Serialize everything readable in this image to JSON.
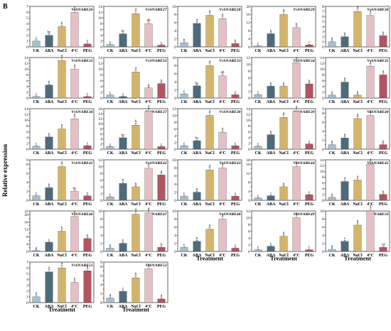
{
  "figure": {
    "panel_letter": "B",
    "y_axis_label": "Relative expression",
    "x_axis_label": "Treatment",
    "colors": {
      "CK": "#a6bfce",
      "ABA": "#4e6b7c",
      "NaCl": "#d4b46d",
      "4°C": "#e6bfc6",
      "PEG": "#b05563"
    }
  },
  "chart_data": [
    {
      "type": "bar",
      "title": "VvSNARE26",
      "categories": [
        "CK",
        "ABA",
        "NaCl",
        "4°C",
        "PEG"
      ],
      "values": [
        1,
        2,
        3.5,
        6,
        0.5
      ],
      "letters": [
        "c",
        "bc",
        "b",
        "a",
        "c"
      ],
      "ylim": [
        0,
        7
      ],
      "yticks": [
        0,
        1,
        2,
        3,
        4,
        5,
        6,
        7
      ]
    },
    {
      "type": "bar",
      "title": "VvSNARE27",
      "categories": [
        "CK",
        "ABA",
        "NaCl",
        "4°C",
        "PEG"
      ],
      "values": [
        0.8,
        4.5,
        11.5,
        8,
        0.6
      ],
      "letters": [
        "c",
        "bc",
        "a",
        "ab",
        "c"
      ],
      "ylim": [
        0,
        14
      ],
      "yticks": [
        0,
        2,
        4,
        6,
        8,
        10,
        12,
        14
      ]
    },
    {
      "type": "bar",
      "title": "VvSNARE28",
      "categories": [
        "CK",
        "ABA",
        "NaCl",
        "4°C",
        "PEG"
      ],
      "values": [
        1,
        5.8,
        7.8,
        7,
        0.8
      ],
      "letters": [
        "b",
        "a",
        "a",
        "a",
        "b"
      ],
      "ylim": [
        0,
        10
      ],
      "yticks": [
        0,
        2,
        4,
        6,
        8,
        10
      ]
    },
    {
      "type": "bar",
      "title": "VvSNARE29",
      "categories": [
        "CK",
        "ABA",
        "NaCl",
        "4°C",
        "PEG"
      ],
      "values": [
        0.5,
        6.5,
        16,
        9.5,
        1
      ],
      "letters": [
        "c",
        "b",
        "a",
        "b",
        "c"
      ],
      "ylim": [
        0,
        20
      ],
      "yticks": [
        0,
        2,
        4,
        6,
        8,
        10,
        12,
        14,
        16,
        18,
        20
      ]
    },
    {
      "type": "bar",
      "title": "VvSNARE30",
      "categories": [
        "CK",
        "ABA",
        "NaCl",
        "4°C",
        "PEG"
      ],
      "values": [
        1,
        2,
        7,
        6.2,
        2.2
      ],
      "letters": [
        "b",
        "b",
        "a",
        "a",
        "b"
      ],
      "ylim": [
        0,
        8
      ],
      "yticks": [
        0,
        1,
        2,
        3,
        4,
        5,
        6,
        7,
        8
      ]
    },
    {
      "type": "bar",
      "title": "VvSNARE31",
      "categories": [
        "CK",
        "ABA",
        "NaCl",
        "4°C",
        "PEG"
      ],
      "values": [
        0.5,
        4.5,
        13,
        10,
        0.5
      ],
      "letters": [
        "c",
        "b",
        "a",
        "a",
        "c"
      ],
      "ylim": [
        0,
        14
      ],
      "yticks": [
        0,
        1,
        2,
        3,
        4,
        5,
        6,
        7,
        8,
        9,
        10,
        11,
        12,
        13,
        14
      ]
    },
    {
      "type": "bar",
      "title": "VvSNARE32",
      "categories": [
        "CK",
        "ABA",
        "NaCl",
        "4°C",
        "PEG"
      ],
      "values": [
        1,
        0.5,
        9,
        3.5,
        5
      ],
      "letters": [
        "c",
        "c",
        "a",
        "b",
        "b"
      ],
      "ylim": [
        0,
        14
      ],
      "yticks": [
        0,
        2,
        4,
        6,
        8,
        10,
        12,
        14
      ]
    },
    {
      "type": "bar",
      "title": "VvSNARE33",
      "categories": [
        "CK",
        "ABA",
        "NaCl",
        "4°C",
        "PEG"
      ],
      "values": [
        1,
        3,
        8,
        5.5,
        0.8
      ],
      "letters": [
        "c",
        "bc",
        "a",
        "ab",
        "c"
      ],
      "ylim": [
        0,
        10
      ],
      "yticks": [
        0,
        2,
        4,
        6,
        8,
        10
      ]
    },
    {
      "type": "bar",
      "title": "VvSNARE34",
      "categories": [
        "CK",
        "ABA",
        "NaCl",
        "4°C",
        "PEG"
      ],
      "values": [
        1,
        3.5,
        3.5,
        10.5,
        4.2
      ],
      "letters": [
        "c",
        "b",
        "b",
        "a",
        "b"
      ],
      "ylim": [
        0,
        12
      ],
      "yticks": [
        0,
        2,
        4,
        6,
        8,
        10,
        12
      ]
    },
    {
      "type": "bar",
      "title": "VvSNARE35",
      "categories": [
        "CK",
        "ABA",
        "NaCl",
        "4°C",
        "PEG"
      ],
      "values": [
        1,
        5.5,
        1,
        11,
        8
      ],
      "letters": [
        "b",
        "b",
        "b",
        "a",
        "a"
      ],
      "ylim": [
        0,
        14
      ],
      "yticks": [
        0,
        2,
        4,
        6,
        8,
        10,
        12,
        14
      ]
    },
    {
      "type": "bar",
      "title": "VvSNARE36",
      "categories": [
        "CK",
        "ABA",
        "NaCl",
        "4°C",
        "PEG"
      ],
      "values": [
        1,
        4.2,
        7,
        10.5,
        1.2
      ],
      "letters": [
        "c",
        "b",
        "b",
        "a",
        "c"
      ],
      "ylim": [
        0,
        14
      ],
      "yticks": [
        0,
        2,
        4,
        6,
        8,
        10,
        12,
        14
      ]
    },
    {
      "type": "bar",
      "title": "VvSNARE37",
      "categories": [
        "CK",
        "ABA",
        "NaCl",
        "4°C",
        "PEG"
      ],
      "values": [
        1,
        4.5,
        9.5,
        15,
        1
      ],
      "letters": [
        "c",
        "bc",
        "b",
        "a",
        "c"
      ],
      "ylim": [
        0,
        16
      ],
      "yticks": [
        0,
        2,
        4,
        6,
        8,
        10,
        12,
        14,
        16
      ]
    },
    {
      "type": "bar",
      "title": "VvSNARE38",
      "categories": [
        "CK",
        "ABA",
        "NaCl",
        "4°C",
        "PEG"
      ],
      "values": [
        1,
        2.5,
        10,
        5,
        1
      ],
      "letters": [
        "c",
        "bc",
        "a",
        "b",
        "c"
      ],
      "ylim": [
        0,
        12
      ],
      "yticks": [
        0,
        2,
        4,
        6,
        8,
        10,
        12
      ]
    },
    {
      "type": "bar",
      "title": "VvSNARE39",
      "categories": [
        "CK",
        "ABA",
        "NaCl",
        "4°C",
        "PEG"
      ],
      "values": [
        1,
        5,
        11,
        13,
        1.8
      ],
      "letters": [
        "c",
        "b",
        "a",
        "a",
        "c"
      ],
      "ylim": [
        0,
        14
      ],
      "yticks": [
        0,
        2,
        4,
        6,
        8,
        10,
        12,
        14
      ]
    },
    {
      "type": "bar",
      "title": "VvSNARE40",
      "categories": [
        "CK",
        "ABA",
        "NaCl",
        "4°C",
        "PEG"
      ],
      "values": [
        1,
        2.5,
        6.8,
        7.5,
        1
      ],
      "letters": [
        "b",
        "b",
        "a",
        "a",
        "b"
      ],
      "ylim": [
        0,
        9
      ],
      "yticks": [
        0,
        1,
        2,
        3,
        4,
        5,
        6,
        7,
        8,
        9
      ]
    },
    {
      "type": "bar",
      "title": "VvSNARE41",
      "categories": [
        "CK",
        "ABA",
        "NaCl",
        "4°C",
        "PEG"
      ],
      "values": [
        1,
        2.8,
        7.5,
        2,
        1
      ],
      "letters": [
        "c",
        "b",
        "a",
        "bc",
        "c"
      ],
      "ylim": [
        0,
        9
      ],
      "yticks": [
        0,
        1,
        2,
        3,
        4,
        5,
        6,
        7,
        8,
        9
      ]
    },
    {
      "type": "bar",
      "title": "VvSNARE42",
      "categories": [
        "CK",
        "ABA",
        "NaCl",
        "4°C",
        "PEG"
      ],
      "values": [
        1,
        5,
        4,
        9.5,
        7.5
      ],
      "letters": [
        "c",
        "b",
        "b",
        "a",
        "a"
      ],
      "ylim": [
        0,
        12
      ],
      "yticks": [
        0,
        2,
        4,
        6,
        8,
        10,
        12
      ]
    },
    {
      "type": "bar",
      "title": "VvSNARE43",
      "categories": [
        "CK",
        "ABA",
        "NaCl",
        "4°C",
        "PEG"
      ],
      "values": [
        1,
        2,
        7.5,
        8,
        1
      ],
      "letters": [
        "c",
        "b",
        "a",
        "a",
        "c"
      ],
      "ylim": [
        0,
        10
      ],
      "yticks": [
        0,
        2,
        4,
        6,
        8,
        10
      ]
    },
    {
      "type": "bar",
      "title": "VvSNARE44",
      "categories": [
        "CK",
        "ABA",
        "NaCl",
        "4°C",
        "PEG"
      ],
      "values": [
        1,
        2,
        6,
        15,
        2.5
      ],
      "letters": [
        "c",
        "c",
        "b",
        "a",
        "c"
      ],
      "ylim": [
        0,
        18
      ],
      "yticks": [
        0,
        2,
        4,
        6,
        8,
        10,
        12,
        14,
        16,
        18
      ]
    },
    {
      "type": "bar",
      "title": "VvSNARE45",
      "categories": [
        "CK",
        "ABA",
        "NaCl",
        "4°C",
        "PEG"
      ],
      "values": [
        1,
        6.5,
        7,
        12.5,
        2
      ],
      "letters": [
        "b",
        "a",
        "a",
        "a",
        "b"
      ],
      "ylim": [
        0,
        14
      ],
      "yticks": [
        0,
        2,
        4,
        6,
        8,
        10,
        12,
        14
      ]
    },
    {
      "type": "bar",
      "title": "VvSNARE46",
      "categories": [
        "CK",
        "ABA",
        "NaCl",
        "4°C",
        "PEG"
      ],
      "values": [
        0.5,
        5,
        11,
        19,
        7
      ],
      "letters": [
        "d",
        "c",
        "b",
        "a",
        "b"
      ],
      "ylim": [
        0,
        22
      ],
      "yticks": [
        0,
        2,
        4,
        6,
        8,
        10,
        12,
        14,
        16,
        18,
        20,
        22
      ]
    },
    {
      "type": "bar",
      "title": "VvSNARE47",
      "categories": [
        "CK",
        "ABA",
        "NaCl",
        "4°C",
        "PEG"
      ],
      "values": [
        0.8,
        2,
        9.2,
        9.5,
        1
      ],
      "letters": [
        "b",
        "b",
        "a",
        "a",
        "b"
      ],
      "ylim": [
        0,
        10
      ],
      "yticks": [
        0,
        2,
        4,
        6,
        8,
        10
      ]
    },
    {
      "type": "bar",
      "title": "VvSNARE48",
      "categories": [
        "CK",
        "ABA",
        "NaCl",
        "4°C",
        "PEG"
      ],
      "values": [
        1,
        2.5,
        5.5,
        8,
        0.8
      ],
      "letters": [
        "c",
        "b",
        "b",
        "a",
        "c"
      ],
      "ylim": [
        0,
        10
      ],
      "yticks": [
        0,
        2,
        4,
        6,
        8,
        10
      ]
    },
    {
      "type": "bar",
      "title": "VvSNARE49",
      "categories": [
        "CK",
        "ABA",
        "NaCl",
        "4°C",
        "PEG"
      ],
      "values": [
        0.5,
        1.5,
        4.5,
        10,
        0.5
      ],
      "letters": [
        "c",
        "c",
        "b",
        "a",
        "c"
      ],
      "ylim": [
        0,
        12
      ],
      "yticks": [
        0,
        2,
        4,
        6,
        8,
        10,
        12
      ]
    },
    {
      "type": "bar",
      "title": "VvSNARE50",
      "categories": [
        "CK",
        "ABA",
        "NaCl",
        "4°C",
        "PEG"
      ],
      "values": [
        0.5,
        2.5,
        6.5,
        10,
        1
      ],
      "letters": [
        "d",
        "c",
        "b",
        "a",
        "cd"
      ],
      "ylim": [
        0,
        10
      ],
      "yticks": [
        0,
        2,
        4,
        6,
        8,
        10
      ]
    },
    {
      "type": "bar",
      "title": "VvSNARE51",
      "categories": [
        "CK",
        "ABA",
        "NaCl",
        "4°C",
        "PEG"
      ],
      "values": [
        1,
        5.3,
        6,
        3.5,
        5.5
      ],
      "letters": [
        "b",
        "a",
        "a",
        "b",
        "a"
      ],
      "ylim": [
        0,
        7
      ],
      "yticks": [
        0,
        1,
        2,
        3,
        4,
        5,
        6,
        7
      ]
    },
    {
      "type": "bar",
      "title": "VvSNARE52",
      "categories": [
        "CK",
        "ABA",
        "NaCl",
        "4°C",
        "PEG"
      ],
      "values": [
        1,
        2.5,
        5.5,
        7.5,
        0.8
      ],
      "letters": [
        "d",
        "c",
        "b",
        "a",
        "d"
      ],
      "ylim": [
        0,
        9
      ],
      "yticks": [
        0,
        1,
        2,
        3,
        4,
        5,
        6,
        7,
        8,
        9
      ]
    }
  ]
}
